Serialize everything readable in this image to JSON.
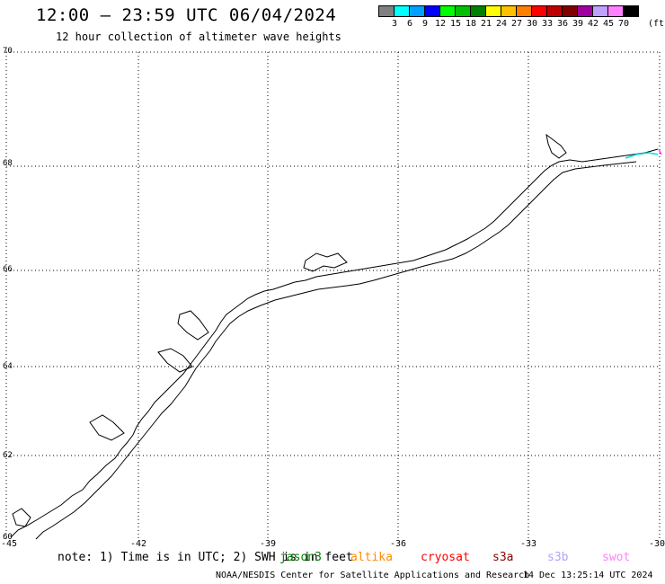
{
  "header": {
    "title": "12:00 – 23:59 UTC 06/04/2024",
    "subtitle": "12 hour collection of altimeter wave heights"
  },
  "colorbar": {
    "unit": "(ft)",
    "ticks": [
      "3",
      "6",
      "9",
      "12",
      "15",
      "18",
      "21",
      "24",
      "27",
      "30",
      "33",
      "36",
      "39",
      "42",
      "45",
      "70"
    ],
    "colors": [
      "#808080",
      "#00ffff",
      "#00a0ff",
      "#0000ff",
      "#00ff00",
      "#00c000",
      "#008000",
      "#ffff00",
      "#ffc000",
      "#ff8000",
      "#ff0000",
      "#c00000",
      "#800000",
      "#a000a0",
      "#c0a0ff",
      "#ff80ff",
      "#000000"
    ]
  },
  "map": {
    "lat_labels": [
      "70",
      "68",
      "66",
      "64",
      "62",
      "60"
    ],
    "lon_labels": [
      "-45",
      "-42",
      "-39",
      "-36",
      "-33",
      "-30"
    ],
    "lat_range": [
      60,
      70
    ],
    "lon_range": [
      -45,
      -30
    ],
    "coastline_color": "#000000",
    "grid": true
  },
  "note": {
    "text": "note: 1) Time is in UTC; 2) SWH is in feet"
  },
  "satellites": [
    {
      "name": "jason3",
      "color": "#008000"
    },
    {
      "name": "altika",
      "color": "#ff8c00"
    },
    {
      "name": "cryosat",
      "color": "#ff0000"
    },
    {
      "name": "s3a",
      "color": "#8b0000"
    },
    {
      "name": "s3b",
      "color": "#b0a0ff"
    },
    {
      "name": "swot",
      "color": "#ff80ff"
    }
  ],
  "footer": {
    "credit": "NOAA/NESDIS Center for Satellite Applications and Research",
    "timestamp": "14 Dec 13:25:14 UTC 2024"
  }
}
